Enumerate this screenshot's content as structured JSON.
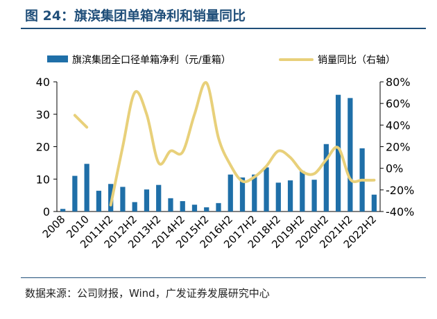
{
  "title": "图 24：旗滨集团单箱净利和销量同比",
  "source": "数据来源：公司财报，Wind，广发证券发展研究中心",
  "colors": {
    "bar": "#1f6fa8",
    "line": "#e8d07a",
    "title": "#1f4e79"
  },
  "chart_data": {
    "type": "bar+line",
    "legend_position": "top",
    "grid": false,
    "y_left": {
      "min": 0,
      "max": 40,
      "ticks": [
        0,
        10,
        20,
        30,
        40
      ],
      "tick_labels": [
        "0",
        "10",
        "20",
        "30",
        "40"
      ]
    },
    "y_right": {
      "min": -40,
      "max": 80,
      "ticks": [
        -40,
        -20,
        0,
        20,
        40,
        60,
        80
      ],
      "tick_labels": [
        "-40%",
        "-20%",
        "0%",
        "20%",
        "40%",
        "60%",
        "80%"
      ]
    },
    "x_tick_labels": [
      "2008",
      "2010",
      "2011H2",
      "2012H2",
      "2013H2",
      "2014H2",
      "2015H2",
      "2016H2",
      "2017H2",
      "2018H2",
      "2019H2",
      "2020H2",
      "2021H2",
      "2022H2"
    ],
    "categories": [
      "2008",
      "2009",
      "2010",
      "2011H1",
      "2011H2",
      "2012H1",
      "2012H2",
      "2013H1",
      "2013H2",
      "2014H1",
      "2014H2",
      "2015H1",
      "2015H2",
      "2016H1",
      "2016H2",
      "2017H1",
      "2017H2",
      "2018H1",
      "2018H2",
      "2019H1",
      "2019H2",
      "2020H1",
      "2020H2",
      "2021H1",
      "2021H2",
      "2022H1",
      "2022H2"
    ],
    "series": [
      {
        "name": "旗滨集团全口径单箱净利（元/重箱）",
        "type": "bar",
        "axis": "left",
        "values": [
          0.8,
          11,
          14.7,
          6.4,
          8.5,
          7.6,
          2.9,
          6.8,
          8.2,
          4.1,
          3.2,
          2.1,
          1.3,
          2.6,
          11.4,
          10.5,
          11.4,
          13.6,
          8.9,
          9.6,
          12.5,
          9.8,
          20.8,
          36,
          35,
          19.5,
          5.2
        ]
      },
      {
        "name": "销量同比（右轴）",
        "type": "line",
        "axis": "right",
        "values": [
          null,
          49,
          38,
          null,
          -34,
          20,
          70,
          50,
          5,
          16,
          15,
          50,
          79,
          28,
          3,
          -12,
          -8,
          2,
          16,
          10,
          -3,
          -5,
          8,
          19,
          -10,
          -11,
          -11
        ]
      }
    ]
  }
}
